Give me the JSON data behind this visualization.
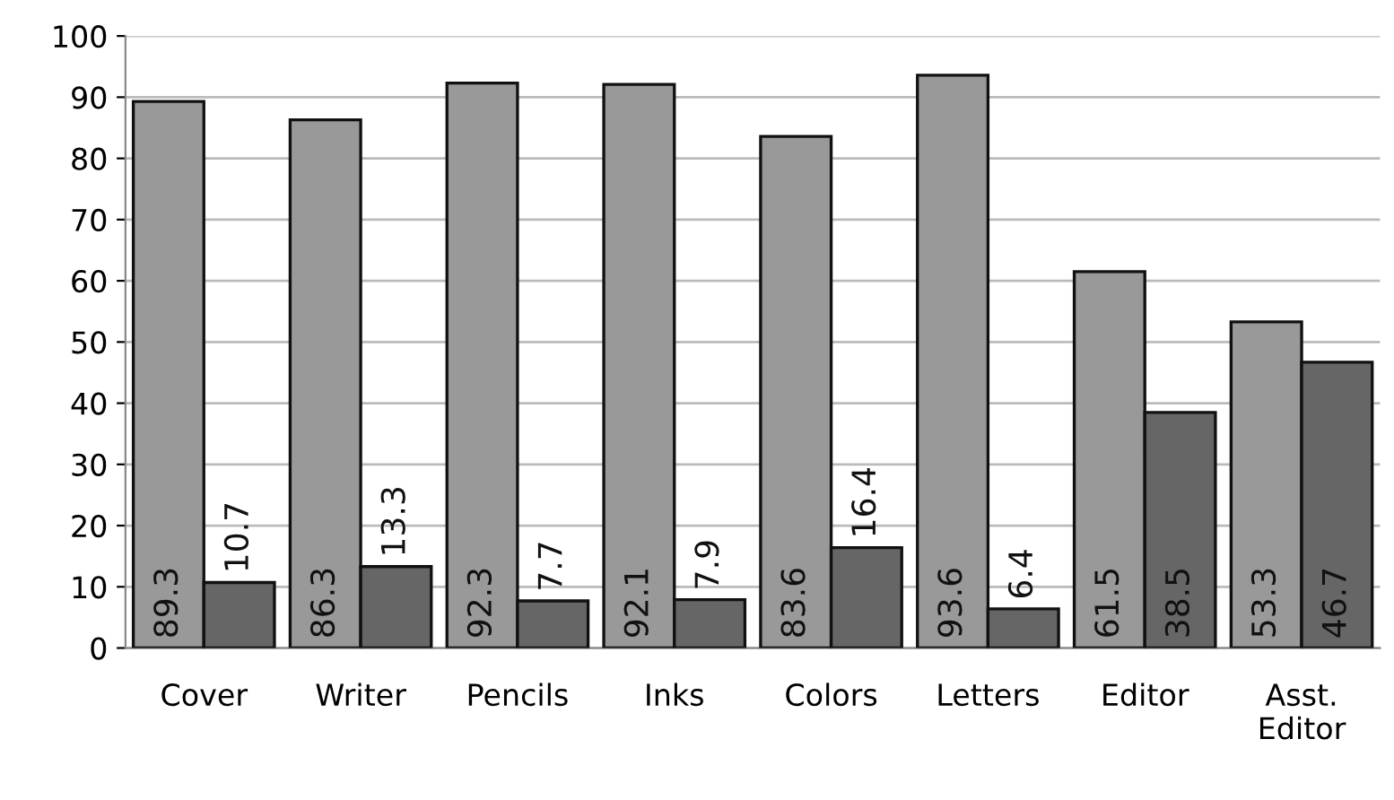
{
  "chart_data": {
    "type": "bar",
    "categories": [
      "Cover",
      "Writer",
      "Pencils",
      "Inks",
      "Colors",
      "Letters",
      "Editor",
      "Asst.\nEditor"
    ],
    "series": [
      {
        "color": "#999999",
        "values": [
          89.3,
          86.3,
          92.3,
          92.1,
          83.6,
          93.6,
          61.5,
          53.3
        ]
      },
      {
        "color": "#666666",
        "values": [
          10.7,
          13.3,
          7.7,
          7.9,
          16.4,
          6.4,
          38.5,
          46.7
        ]
      }
    ],
    "ylim": [
      0,
      100
    ],
    "yticks": [
      0,
      10,
      20,
      30,
      40,
      50,
      60,
      70,
      80,
      90,
      100
    ],
    "grid": "y",
    "data_labels": true,
    "legend": false
  }
}
